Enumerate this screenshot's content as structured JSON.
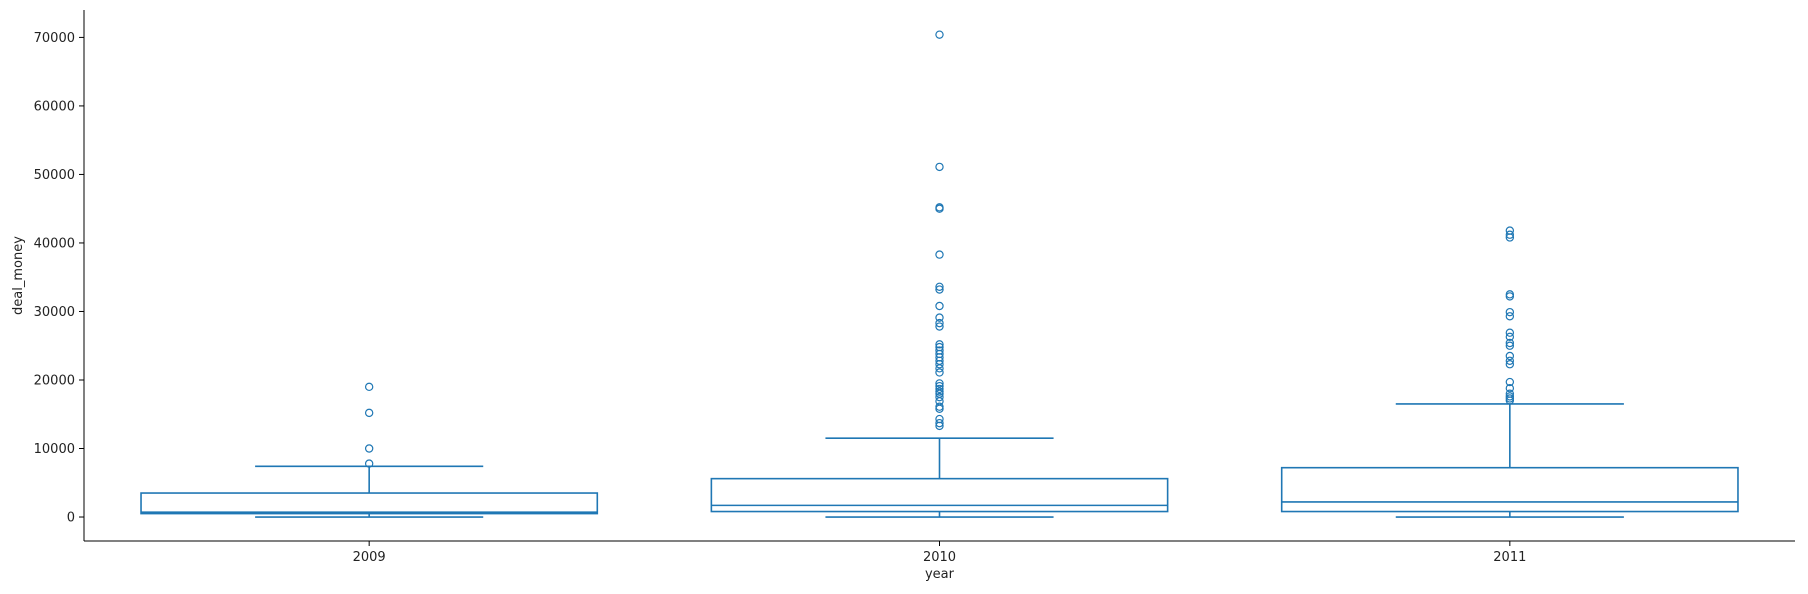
{
  "chart_data": {
    "type": "box",
    "title": "",
    "xlabel": "year",
    "ylabel": "deal_money",
    "categories": [
      "2009",
      "2010",
      "2011"
    ],
    "ylim": [
      -3500,
      74000
    ],
    "yticks": [
      0,
      10000,
      20000,
      30000,
      40000,
      50000,
      60000,
      70000
    ],
    "grid": false,
    "boxes": [
      {
        "category": "2009",
        "whisker_low": 0,
        "q1": 500,
        "median": 700,
        "q3": 3500,
        "whisker_high": 7400,
        "outliers": [
          7800,
          10000,
          15200,
          19000
        ]
      },
      {
        "category": "2010",
        "whisker_low": 0,
        "q1": 800,
        "median": 1700,
        "q3": 5600,
        "whisker_high": 11500,
        "outliers": [
          13300,
          13700,
          14300,
          15800,
          16100,
          16900,
          17500,
          18000,
          18300,
          18700,
          19100,
          19500,
          21100,
          21700,
          22300,
          22800,
          23300,
          23800,
          24300,
          24800,
          25200,
          27800,
          28300,
          29100,
          30800,
          33200,
          33600,
          38300,
          45000,
          45200,
          51100,
          70400
        ]
      },
      {
        "category": "2011",
        "whisker_low": 0,
        "q1": 800,
        "median": 2200,
        "q3": 7200,
        "whisker_high": 16500,
        "outliers": [
          17000,
          17300,
          17600,
          18000,
          18800,
          19700,
          22300,
          22800,
          23500,
          25000,
          25400,
          26300,
          26900,
          29300,
          29900,
          32200,
          32500,
          40800,
          41200,
          41800
        ]
      }
    ],
    "colors": {
      "box_line": "#1f77b4",
      "axis": "#000000",
      "text": "#222222"
    }
  }
}
